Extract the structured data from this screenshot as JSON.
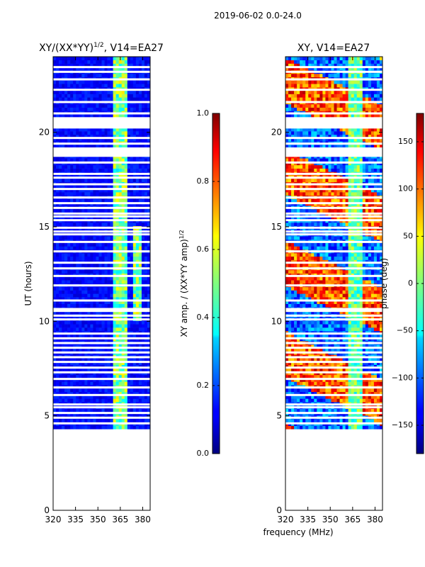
{
  "suptitle": "2019-06-02 0.0-24.0",
  "chart_data": [
    {
      "type": "heatmap",
      "title_main": "XY/(XX*YY)",
      "title_sup": "1/2",
      "title_suffix": ", V14=EA27",
      "xlabel": "",
      "ylabel": "UT (hours)",
      "xlim": [
        320,
        385
      ],
      "ylim": [
        0,
        24
      ],
      "xticks": [
        320,
        335,
        350,
        365,
        380
      ],
      "yticks": [
        0,
        5,
        10,
        15,
        20
      ],
      "data_start_hour": 4.3,
      "data_end_hour": 24,
      "colormap": "jet",
      "colorbar": {
        "label_main": "XY amp. / (XX*YY amp)",
        "label_sup": "1/2",
        "range": [
          0.0,
          1.0
        ],
        "ticks": [
          "0.0",
          "0.2",
          "0.4",
          "0.6",
          "0.8",
          "1.0"
        ]
      }
    },
    {
      "type": "heatmap",
      "title_main": "XY, V14=EA27",
      "xlabel": "frequency (MHz)",
      "ylabel": "",
      "xlim": [
        320,
        385
      ],
      "ylim": [
        0,
        24
      ],
      "xticks": [
        320,
        335,
        350,
        365,
        380
      ],
      "yticks": [
        0,
        5,
        10,
        15,
        20
      ],
      "data_start_hour": 4.3,
      "data_end_hour": 24,
      "colormap": "jet",
      "colorbar": {
        "label_main": "phase (deg)",
        "range": [
          -180,
          180
        ],
        "ticks": [
          "−150",
          "−100",
          "−50",
          "0",
          "50",
          "100",
          "150"
        ]
      }
    }
  ],
  "gap_hours": [
    4.6,
    4.9,
    5.15,
    5.45,
    5.6,
    6.1,
    6.5,
    6.95,
    7.3,
    7.55,
    7.85,
    8.1,
    8.35,
    8.6,
    8.85,
    9.1,
    9.35,
    10.1,
    10.3,
    10.55,
    10.65,
    11.1,
    11.9,
    12.4,
    12.8,
    13.1,
    13.7,
    14.2,
    14.6,
    14.75,
    14.95,
    15.35,
    15.55,
    15.7,
    16.0,
    16.25,
    16.55,
    17.0,
    17.25,
    17.6,
    17.8,
    18.4,
    19.05,
    19.4,
    19.7,
    21.0,
    21.6,
    22.25,
    22.8,
    23.2,
    23.45
  ]
}
